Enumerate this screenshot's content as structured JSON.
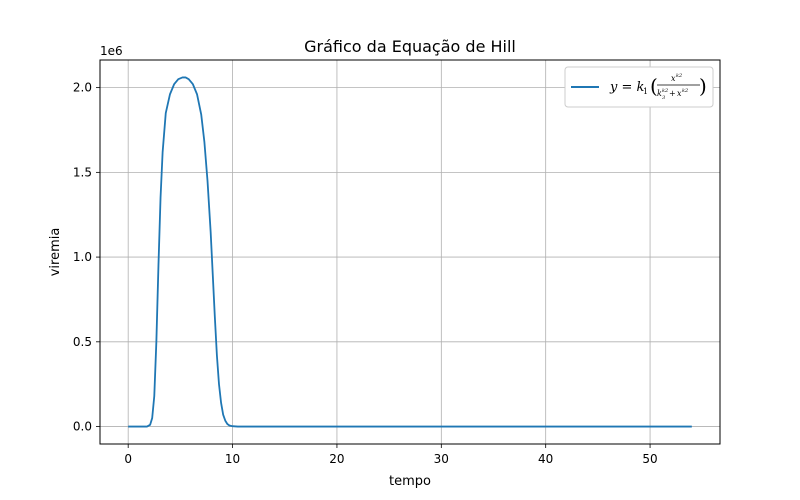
{
  "chart_data": {
    "type": "line",
    "title": "Gráfico da Equação de Hill",
    "xlabel": "tempo",
    "ylabel": "viremia",
    "y_offset_label": "1e6",
    "xlim": [
      -2.7,
      56.7
    ],
    "ylim": [
      -0.103,
      2.163
    ],
    "y_units": "1e6",
    "grid": true,
    "legend_position": "top-right",
    "x_ticks": [
      0,
      10,
      20,
      30,
      40,
      50
    ],
    "x_tick_labels": [
      "0",
      "10",
      "20",
      "30",
      "40",
      "50"
    ],
    "y_ticks": [
      0.0,
      0.5,
      1.0,
      1.5,
      2.0
    ],
    "y_tick_labels": [
      "0.0",
      "0.5",
      "1.0",
      "1.5",
      "2.0"
    ],
    "series": [
      {
        "name": "y = k1(x^k2/(k3^k2 + x^k2))",
        "color": "#1f77b4",
        "x": [
          0,
          1,
          1.8,
          2.1,
          2.3,
          2.5,
          2.7,
          2.9,
          3.1,
          3.3,
          3.6,
          4.0,
          4.4,
          4.8,
          5.2,
          5.5,
          5.8,
          6.2,
          6.6,
          7.0,
          7.3,
          7.6,
          7.9,
          8.1,
          8.3,
          8.5,
          8.7,
          8.9,
          9.1,
          9.3,
          9.5,
          9.7,
          10.0,
          10.5,
          12,
          20,
          30,
          40,
          50,
          54
        ],
        "y": [
          0.0,
          0.0,
          0.0,
          0.01,
          0.05,
          0.18,
          0.5,
          0.95,
          1.35,
          1.62,
          1.85,
          1.96,
          2.02,
          2.05,
          2.06,
          2.06,
          2.05,
          2.02,
          1.96,
          1.84,
          1.68,
          1.45,
          1.15,
          0.9,
          0.65,
          0.42,
          0.25,
          0.14,
          0.07,
          0.035,
          0.015,
          0.006,
          0.002,
          0.0,
          0.0,
          0.0,
          0.0,
          0.0,
          0.0,
          0.0
        ]
      }
    ]
  }
}
